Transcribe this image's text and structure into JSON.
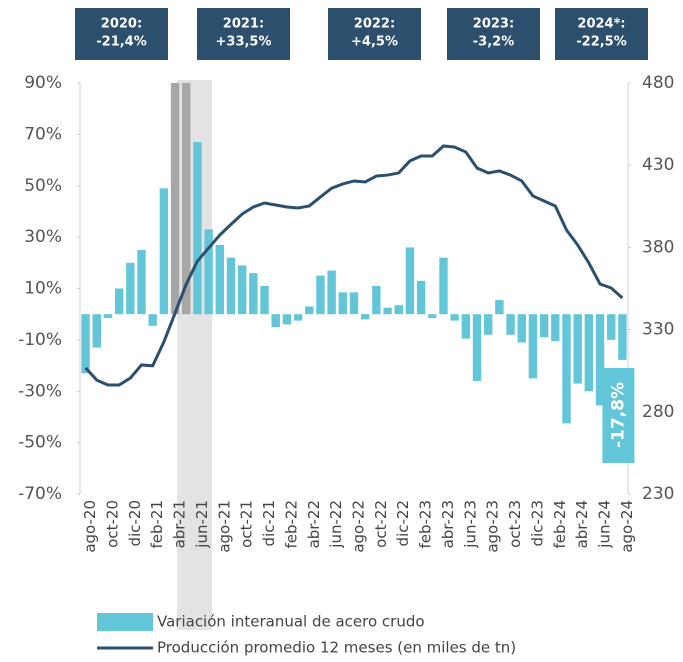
{
  "chart_data": {
    "type": "bar_line",
    "annotations": [
      [
        "2020:",
        "-21,4%"
      ],
      [
        "2021:",
        "+33,5%"
      ],
      [
        "2022:",
        "+4,5%"
      ],
      [
        "2023:",
        "-3,2%"
      ],
      [
        "2024*:",
        "-22,5%"
      ]
    ],
    "categories": [
      "ago-20",
      null,
      "oct-20",
      null,
      "dic-20",
      null,
      "feb-21",
      null,
      "abr-21",
      null,
      "jun-21",
      null,
      "ago-21",
      null,
      "oct-21",
      null,
      "dic-21",
      null,
      "feb-22",
      null,
      "abr-22",
      null,
      "jun-22",
      null,
      "ago-22",
      null,
      "oct-22",
      null,
      "dic-22",
      null,
      "feb-23",
      null,
      "abr-23",
      null,
      "jun-23",
      null,
      "ago-23",
      null,
      "oct-23",
      null,
      "dic-23",
      null,
      "feb-24",
      null,
      "abr-24",
      null,
      "jun-24",
      null,
      "ago-24"
    ],
    "series": [
      {
        "name": "Variación interanual de acero crudo",
        "color": "#62c6d8",
        "colors": [
          "#62c6d8",
          "#62c6d8",
          "#62c6d8",
          "#62c6d8",
          "#62c6d8",
          "#62c6d8",
          "#62c6d8",
          "#62c6d8",
          "#a6a6a6",
          "#a6a6a6",
          "#62c6d8",
          "#62c6d8",
          "#62c6d8",
          "#62c6d8",
          "#62c6d8",
          "#62c6d8",
          "#62c6d8",
          "#62c6d8",
          "#62c6d8",
          "#62c6d8",
          "#62c6d8",
          "#62c6d8",
          "#62c6d8",
          "#62c6d8",
          "#62c6d8",
          "#62c6d8",
          "#62c6d8",
          "#62c6d8",
          "#62c6d8",
          "#62c6d8",
          "#62c6d8",
          "#62c6d8",
          "#62c6d8",
          "#62c6d8",
          "#62c6d8",
          "#62c6d8",
          "#62c6d8",
          "#62c6d8",
          "#62c6d8",
          "#62c6d8",
          "#62c6d8",
          "#62c6d8",
          "#62c6d8",
          "#62c6d8",
          "#62c6d8",
          "#62c6d8",
          "#62c6d8",
          "#62c6d8",
          "#62c6d8"
        ],
        "values": [
          -23,
          -13,
          -1.5,
          10,
          20,
          25,
          -4.5,
          49,
          90,
          90,
          67,
          33,
          27,
          22,
          19,
          16,
          11,
          -5,
          -4,
          -2.5,
          3,
          15,
          17,
          8.5,
          8.5,
          -2,
          11,
          2.5,
          3.5,
          26,
          13,
          -1.5,
          22,
          -2.5,
          -9.5,
          -26,
          -8,
          5.5,
          -8,
          -11,
          -25,
          -9,
          -10.5,
          -42.5,
          -27,
          -30,
          -35.5,
          -10,
          -17.8
        ],
        "value_labels": [
          null,
          null,
          null,
          null,
          null,
          null,
          null,
          null,
          null,
          null,
          null,
          null,
          null,
          null,
          null,
          null,
          null,
          null,
          null,
          null,
          null,
          null,
          null,
          null,
          null,
          null,
          null,
          null,
          null,
          null,
          null,
          null,
          null,
          null,
          null,
          null,
          null,
          null,
          null,
          null,
          null,
          null,
          null,
          null,
          null,
          null,
          null,
          null,
          "-17,8%"
        ]
      },
      {
        "name": "Producción promedio 12 meses (en miles de tn)",
        "color": "#2c4f6e",
        "axis": "y2",
        "values": [
          306.7,
          299.3,
          296.3,
          296.3,
          300.5,
          308.5,
          308,
          322.5,
          340,
          357.7,
          371.7,
          379.6,
          387.5,
          394,
          400.3,
          404.6,
          407,
          405.8,
          404.6,
          404,
          405.2,
          410.7,
          416,
          418.6,
          420.4,
          419.8,
          423.4,
          424,
          425.3,
          432.6,
          435.6,
          435.6,
          441.7,
          441,
          438,
          428.3,
          425.3,
          426.5,
          424,
          420.4,
          411.3,
          408.2,
          405.2,
          390.6,
          381.5,
          370.5,
          357.7,
          355.3,
          349.2
        ]
      }
    ],
    "ylim": [
      -70,
      90
    ],
    "yticks": [
      {
        "value": -70,
        "label": "-70%"
      },
      {
        "value": -50,
        "label": "-50%"
      },
      {
        "value": -30,
        "label": "-30%"
      },
      {
        "value": -10,
        "label": "-10%"
      },
      {
        "value": 10,
        "label": "10%"
      },
      {
        "value": 30,
        "label": "30%"
      },
      {
        "value": 50,
        "label": "50%"
      },
      {
        "value": 70,
        "label": "70%"
      },
      {
        "value": 90,
        "label": "90%"
      }
    ],
    "y2lim": [
      230,
      480
    ],
    "y2ticks": [
      230,
      280,
      330,
      380,
      430,
      480
    ]
  }
}
